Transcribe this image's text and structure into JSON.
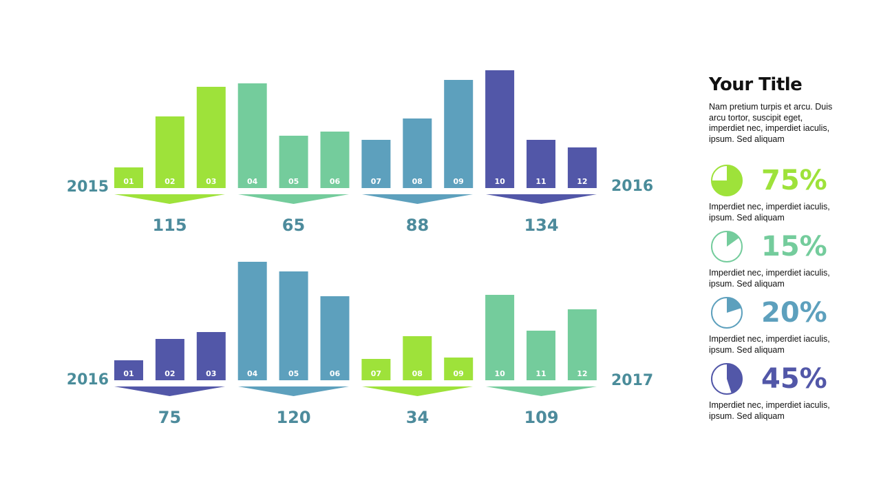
{
  "colors": {
    "green": "#9ee23a",
    "mint": "#74cc9c",
    "teal": "#5da0bd",
    "indigo": "#5257a8",
    "label": "#4a8c9a"
  },
  "chart_data": [
    {
      "type": "bar",
      "categories": [
        "01",
        "02",
        "03",
        "04",
        "05",
        "06",
        "07",
        "08",
        "09",
        "10",
        "11",
        "12"
      ],
      "values": [
        30,
        104,
        147,
        152,
        76,
        82,
        70,
        101,
        157,
        171,
        70,
        59
      ],
      "bar_colors": [
        "green",
        "green",
        "green",
        "mint",
        "mint",
        "mint",
        "teal",
        "teal",
        "teal",
        "indigo",
        "indigo",
        "indigo"
      ],
      "start_label": "2015",
      "end_label": "2016",
      "group_totals": [
        "115",
        "65",
        "88",
        "134"
      ],
      "group_colors": [
        "green",
        "mint",
        "teal",
        "indigo"
      ]
    },
    {
      "type": "bar",
      "categories": [
        "01",
        "02",
        "03",
        "04",
        "05",
        "06",
        "07",
        "08",
        "09",
        "10",
        "11",
        "12"
      ],
      "values": [
        29,
        60,
        70,
        172,
        158,
        122,
        31,
        64,
        33,
        124,
        72,
        103
      ],
      "bar_colors": [
        "indigo",
        "indigo",
        "indigo",
        "teal",
        "teal",
        "teal",
        "green",
        "green",
        "green",
        "mint",
        "mint",
        "mint"
      ],
      "start_label": "2016",
      "end_label": "2017",
      "group_totals": [
        "75",
        "120",
        "34",
        "109"
      ],
      "group_colors": [
        "indigo",
        "teal",
        "green",
        "mint"
      ]
    }
  ],
  "sidebar": {
    "title": "Your Title",
    "description": "Nam pretium turpis et arcu. Duis arcu tortor, suscipit eget, imperdiet nec, imperdiet iaculis, ipsum. Sed aliquam",
    "stats": [
      {
        "value": 0.75,
        "label": "75%",
        "color": "green",
        "description": "Imperdiet nec, imperdiet iaculis, ipsum. Sed aliquam"
      },
      {
        "value": 0.15,
        "label": "15%",
        "color": "mint",
        "description": "Imperdiet nec, imperdiet iaculis, ipsum. Sed aliquam"
      },
      {
        "value": 0.2,
        "label": "20%",
        "color": "teal",
        "description": "Imperdiet nec, imperdiet iaculis, ipsum. Sed aliquam"
      },
      {
        "value": 0.45,
        "label": "45%",
        "color": "indigo",
        "description": "Imperdiet nec, imperdiet iaculis, ipsum. Sed aliquam"
      }
    ]
  }
}
